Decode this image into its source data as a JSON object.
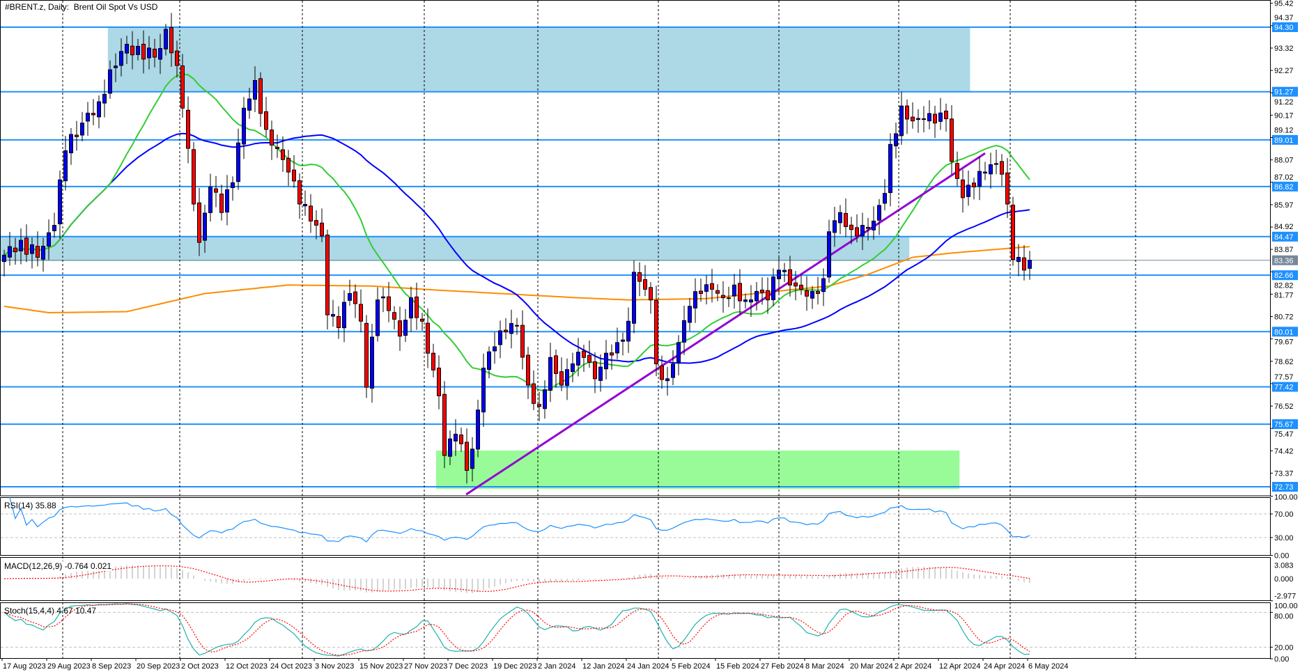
{
  "header": {
    "title": "#BRENT.z, Daily:  Brent Oil Spot Vs USD"
  },
  "price_axis": {
    "ticks": [
      "95.42",
      "94.37",
      "93.32",
      "92.27",
      "91.22",
      "90.17",
      "89.12",
      "88.07",
      "87.02",
      "85.97",
      "84.92",
      "83.87",
      "82.82",
      "81.77",
      "80.72",
      "79.67",
      "78.62",
      "77.57",
      "76.52",
      "75.47",
      "74.42",
      "73.37"
    ]
  },
  "levels": [
    {
      "price": 94.3,
      "label": "94.30"
    },
    {
      "price": 91.27,
      "label": "91.27"
    },
    {
      "price": 89.01,
      "label": "89.01"
    },
    {
      "price": 86.82,
      "label": "86.82"
    },
    {
      "price": 84.47,
      "label": "84.47"
    },
    {
      "price": 82.66,
      "label": "82.66"
    },
    {
      "price": 80.01,
      "label": "80.01"
    },
    {
      "price": 77.42,
      "label": "77.42"
    },
    {
      "price": 75.67,
      "label": "75.67"
    },
    {
      "price": 72.73,
      "label": "72.73"
    }
  ],
  "current_price": {
    "price": 83.36,
    "label": "83.36"
  },
  "indicators": {
    "rsi": {
      "label": "RSI(14) 35.88",
      "ticks": [
        "100.00",
        "70.00",
        "30.00",
        "0.00"
      ]
    },
    "macd": {
      "label": "MACD(12,26,9) -0.764 0.021",
      "ticks": [
        "3.083",
        "0.000",
        "-2.977"
      ]
    },
    "stoch": {
      "label": "Stoch(15,4,4) 4.67 10.47",
      "ticks": [
        "100.00",
        "80.00",
        "20.00",
        "0.00"
      ]
    }
  },
  "x_axis": {
    "labels": [
      "17 Aug 2023",
      "29 Aug 2023",
      "8 Sep 2023",
      "20 Sep 2023",
      "2 Oct 2023",
      "12 Oct 2023",
      "24 Oct 2023",
      "3 Nov 2023",
      "15 Nov 2023",
      "27 Nov 2023",
      "7 Dec 2023",
      "19 Dec 2023",
      "2 Jan 2024",
      "12 Jan 2024",
      "24 Jan 2024",
      "5 Feb 2024",
      "15 Feb 2024",
      "27 Feb 2024",
      "8 Mar 2024",
      "20 Mar 2024",
      "2 Apr 2024",
      "12 Apr 2024",
      "24 Apr 2024",
      "6 May 2024"
    ]
  },
  "colors": {
    "bull": "#0000ff",
    "bear": "#ff0000",
    "level": "#1e90ff",
    "current": "#778899",
    "zone_blue": "#add8e6",
    "zone_green": "#98fb98",
    "trendline": "#9400d3",
    "ma_fast": "#32cd32",
    "ma_slow": "#0000ff",
    "ma_long": "#ff8c00",
    "rsi": "#1e90ff",
    "macd_hist": "#a9a9a9",
    "signal": "#ff0000",
    "stoch_main": "#20b2aa"
  },
  "chart_data": {
    "type": "candlestick",
    "title": "#BRENT.z, Daily: Brent Oil Spot Vs USD",
    "bar_count": 185,
    "ylim": [
      72.6,
      95.42
    ],
    "close_anchors": [
      [
        0,
        83.6
      ],
      [
        3,
        84.3
      ],
      [
        6,
        83.5
      ],
      [
        9,
        85
      ],
      [
        11,
        88.5
      ],
      [
        14,
        89.8
      ],
      [
        17,
        90.8
      ],
      [
        19,
        92.3
      ],
      [
        22,
        93.5
      ],
      [
        25,
        92.8
      ],
      [
        28,
        93.3
      ],
      [
        29,
        94.2
      ],
      [
        31,
        92.5
      ],
      [
        32,
        90.5
      ],
      [
        34,
        86
      ],
      [
        35,
        84.2
      ],
      [
        37,
        86.8
      ],
      [
        39,
        85.6
      ],
      [
        41,
        87
      ],
      [
        43,
        90.5
      ],
      [
        45,
        91.8
      ],
      [
        47,
        89.5
      ],
      [
        49,
        88.6
      ],
      [
        51,
        87.5
      ],
      [
        53,
        86
      ],
      [
        55,
        85.2
      ],
      [
        57,
        84.5
      ],
      [
        58,
        80.8
      ],
      [
        60,
        80.2
      ],
      [
        62,
        81.8
      ],
      [
        64,
        80.5
      ],
      [
        65,
        77.4
      ],
      [
        67,
        81.5
      ],
      [
        69,
        81
      ],
      [
        71,
        79.8
      ],
      [
        73,
        81.6
      ],
      [
        75,
        80.5
      ],
      [
        76,
        79
      ],
      [
        78,
        77
      ],
      [
        79,
        74.2
      ],
      [
        81,
        75.2
      ],
      [
        83,
        73.5
      ],
      [
        84,
        74.5
      ],
      [
        86,
        78.3
      ],
      [
        88,
        79.3
      ],
      [
        90,
        80
      ],
      [
        92,
        80.3
      ],
      [
        94,
        77.5
      ],
      [
        96,
        76.5
      ],
      [
        98,
        78.8
      ],
      [
        100,
        77.5
      ],
      [
        102,
        78.5
      ],
      [
        104,
        78.8
      ],
      [
        106,
        77.8
      ],
      [
        108,
        79
      ],
      [
        110,
        79.5
      ],
      [
        112,
        80.5
      ],
      [
        113,
        82.8
      ],
      [
        115,
        82
      ],
      [
        116,
        81.5
      ],
      [
        117,
        78.5
      ],
      [
        119,
        77.8
      ],
      [
        121,
        79.5
      ],
      [
        123,
        81.2
      ],
      [
        125,
        81.8
      ],
      [
        127,
        82
      ],
      [
        129,
        81.6
      ],
      [
        131,
        82.2
      ],
      [
        133,
        81.5
      ],
      [
        135,
        81.9
      ],
      [
        137,
        81.5
      ],
      [
        139,
        82.9
      ],
      [
        141,
        82.2
      ],
      [
        143,
        82
      ],
      [
        145,
        81.9
      ],
      [
        147,
        82.5
      ],
      [
        148,
        84.7
      ],
      [
        150,
        85.6
      ],
      [
        152,
        84.8
      ],
      [
        154,
        85
      ],
      [
        156,
        85.2
      ],
      [
        158,
        86.5
      ],
      [
        159,
        88.8
      ],
      [
        161,
        90.6
      ],
      [
        163,
        89.9
      ],
      [
        165,
        90
      ],
      [
        167,
        89.8
      ],
      [
        169,
        90
      ],
      [
        170,
        88
      ],
      [
        172,
        86.3
      ],
      [
        174,
        86.8
      ],
      [
        176,
        87.5
      ],
      [
        178,
        87.9
      ],
      [
        179,
        87.4
      ],
      [
        180,
        86
      ],
      [
        181,
        83.4
      ],
      [
        182,
        83.5
      ],
      [
        183,
        82.9
      ],
      [
        184,
        83.36
      ]
    ],
    "ma_long_anchors": [
      [
        0,
        81.2
      ],
      [
        8,
        80.9
      ],
      [
        22,
        80.95
      ],
      [
        36,
        81.8
      ],
      [
        51,
        82.2
      ],
      [
        66,
        82.15
      ],
      [
        77,
        81.97
      ],
      [
        89,
        81.8
      ],
      [
        103,
        81.6
      ],
      [
        112,
        81.5
      ],
      [
        126,
        81.56
      ],
      [
        141,
        81.97
      ],
      [
        148,
        82.15
      ],
      [
        155,
        82.7
      ],
      [
        163,
        83.5
      ],
      [
        170,
        83.7
      ],
      [
        184,
        84.0
      ]
    ],
    "moving_averages": [
      {
        "name": "MA fast",
        "period": 20
      },
      {
        "name": "MA slow",
        "period": 50
      },
      {
        "name": "MA long",
        "period": 200
      }
    ],
    "zones": [
      {
        "name": "resistance-zone",
        "from_bar": 18.6,
        "to_bar": 173.3,
        "top": 94.3,
        "bottom": 91.3,
        "color": "#add8e6"
      },
      {
        "name": "pivot-zone",
        "from_bar": -1,
        "to_bar": 162.4,
        "top": 84.47,
        "bottom": 83.32,
        "color": "#add8e6"
      },
      {
        "name": "support-zone",
        "from_bar": 77.5,
        "to_bar": 171.4,
        "top": 74.43,
        "bottom": 72.63,
        "color": "#98fb98"
      }
    ],
    "trendline": {
      "from": [
        82.9,
        72.37
      ],
      "to": [
        176,
        88.38
      ]
    }
  }
}
